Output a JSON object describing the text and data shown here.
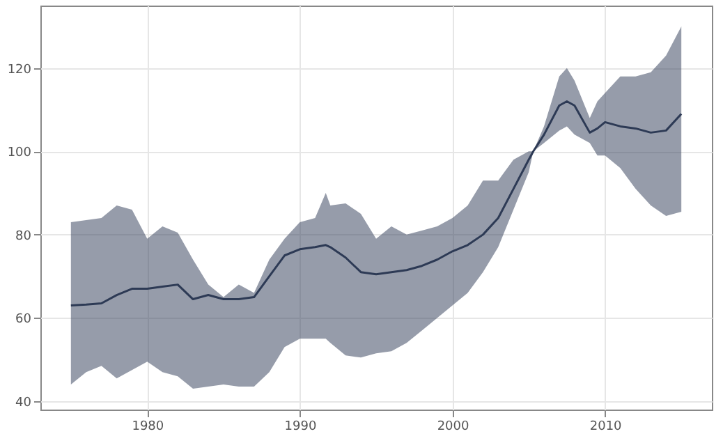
{
  "chart_data": {
    "type": "line",
    "x": [
      1975,
      1976,
      1977,
      1978,
      1979,
      1980,
      1981,
      1982,
      1983,
      1984,
      1985,
      1986,
      1987,
      1988,
      1989,
      1990,
      1991,
      1991.7,
      1992,
      1993,
      1994,
      1995,
      1996,
      1997,
      1998,
      1999,
      2000,
      2001,
      2002,
      2003,
      2004,
      2005,
      2005.3,
      2006,
      2007,
      2007.5,
      2008,
      2009,
      2009.5,
      2010,
      2011,
      2012,
      2013,
      2014,
      2015
    ],
    "series": [
      {
        "color": "#2d3a55",
        "values": [
          63,
          63.2,
          63.5,
          65.5,
          67,
          67,
          67.5,
          68,
          64.5,
          65.5,
          64.5,
          64.5,
          65,
          70,
          75,
          76.5,
          77,
          77.5,
          77,
          74.5,
          71,
          70.5,
          71,
          71.5,
          72.5,
          74,
          76,
          77.5,
          80,
          84,
          91,
          98,
          100,
          104,
          111,
          112,
          111,
          104.5,
          105.5,
          107,
          106,
          105.5,
          104.5,
          105,
          109
        ],
        "lower": [
          44,
          47,
          48.5,
          45.5,
          47.5,
          49.5,
          47,
          46,
          43,
          43.5,
          44,
          43.5,
          43.5,
          47,
          53,
          55,
          55,
          55,
          54,
          51,
          50.5,
          51.5,
          52,
          54,
          57,
          60,
          63,
          66,
          71,
          77,
          86,
          95,
          100,
          102,
          105,
          106,
          104,
          102,
          99,
          99,
          96,
          91,
          87,
          84.5,
          85.5
        ],
        "upper": [
          83,
          83.5,
          84,
          87,
          86,
          79,
          82,
          80.5,
          74,
          68,
          65,
          68,
          66,
          74,
          79,
          83,
          84,
          90,
          87,
          87.5,
          85,
          79,
          82,
          80,
          81,
          82,
          84,
          87,
          93,
          93,
          98,
          100,
          100,
          106,
          118,
          120,
          117,
          108,
          112,
          114,
          118,
          118,
          119,
          123,
          130
        ]
      }
    ],
    "xlim": [
      1973,
      2017
    ],
    "xticks": [
      1980,
      1990,
      2000,
      2010
    ],
    "ylim": [
      38,
      135
    ],
    "yticks": [
      40,
      60,
      80,
      100,
      120
    ],
    "grid": true,
    "marker": "none",
    "line_style": "solid"
  }
}
